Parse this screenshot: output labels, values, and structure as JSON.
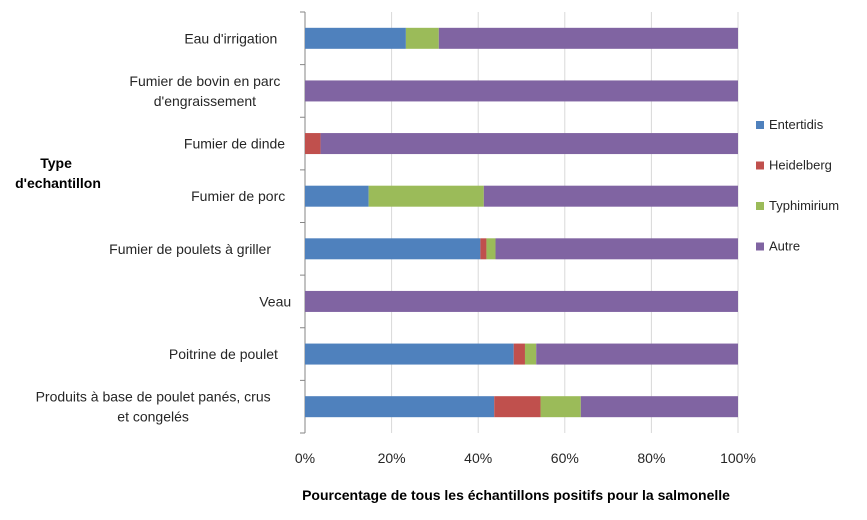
{
  "chart_data": {
    "type": "bar",
    "orientation": "horizontal",
    "stacked": "percent",
    "categories": [
      "Eau d'irrigation",
      "Fumier de bovin en parc d'engraissement",
      "Fumier de dinde",
      "Fumier de porc",
      "Fumier de poulets à griller",
      "Veau",
      "Poitrine de poulet",
      "Produits à base de poulet panés, crus et congelés"
    ],
    "series": [
      {
        "name": "Entertidis",
        "color": "#4f81bd",
        "values": [
          23.3,
          0,
          0,
          14.7,
          40.5,
          0,
          48.2,
          43.7
        ]
      },
      {
        "name": "Heidelberg",
        "color": "#c0504d",
        "values": [
          0,
          0,
          3.6,
          0,
          1.4,
          0,
          2.6,
          10.7
        ]
      },
      {
        "name": "Typhimirium",
        "color": "#9bbb59",
        "values": [
          7.6,
          0,
          0,
          26.6,
          2.1,
          0,
          2.6,
          9.3
        ]
      },
      {
        "name": "Autre",
        "color": "#8064a2",
        "values": [
          69.1,
          100,
          96.4,
          58.7,
          56.0,
          100,
          46.6,
          36.3
        ]
      }
    ],
    "xlim": [
      0,
      100
    ],
    "xticks": [
      "0%",
      "20%",
      "40%",
      "60%",
      "80%",
      "100%"
    ],
    "xlabel": "Pourcentage de tous les échantillons positifs pour la salmonelle",
    "ylabel": "Type d'echantillon",
    "grid": "vertical",
    "legend": "right"
  }
}
